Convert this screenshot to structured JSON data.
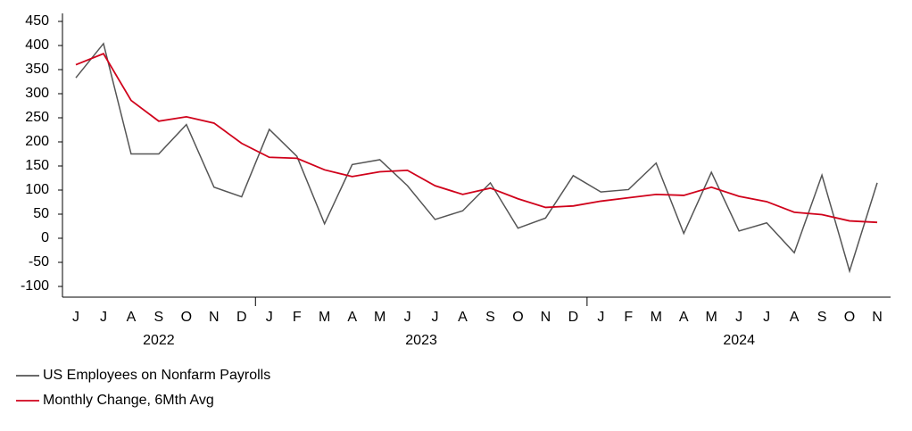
{
  "chart_data": {
    "type": "line",
    "categories": [
      "J",
      "J",
      "A",
      "S",
      "O",
      "N",
      "D",
      "J",
      "F",
      "M",
      "A",
      "M",
      "J",
      "J",
      "A",
      "S",
      "O",
      "N",
      "D",
      "J",
      "F",
      "M",
      "A",
      "M",
      "J",
      "J",
      "A",
      "S",
      "O",
      "N"
    ],
    "groups": [
      {
        "label": "2022",
        "size": 7
      },
      {
        "label": "2023",
        "size": 12
      },
      {
        "label": "2024",
        "size": 11
      }
    ],
    "series": [
      {
        "name": "US Employees on Nonfarm Payrolls",
        "color": "#555555",
        "values": [
          333,
          404,
          175,
          175,
          236,
          106,
          86,
          226,
          170,
          30,
          153,
          163,
          109,
          39,
          57,
          115,
          21,
          42,
          130,
          96,
          101,
          156,
          10,
          137,
          15,
          32,
          -30,
          131,
          -68,
          115
        ]
      },
      {
        "name": "Monthly Change, 6Mth Avg",
        "color": "#d0021b",
        "values": [
          360,
          383,
          286,
          243,
          252,
          239,
          197,
          168,
          166,
          142,
          128,
          138,
          141,
          109,
          91,
          104,
          82,
          64,
          67,
          77,
          84,
          91,
          89,
          106,
          87,
          76,
          54,
          49,
          36,
          33
        ]
      }
    ],
    "ylim": [
      -100,
      450
    ],
    "yticks": [
      -100,
      -50,
      0,
      50,
      100,
      150,
      200,
      250,
      300,
      350,
      400,
      450
    ]
  }
}
